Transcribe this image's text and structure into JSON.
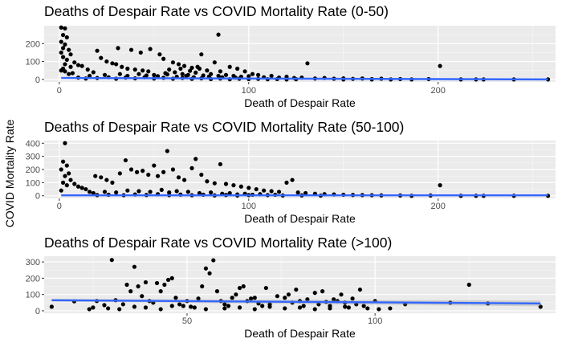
{
  "figure": {
    "ylabel": "COVID Mortality Rate"
  },
  "chart_data": [
    {
      "type": "scatter",
      "title": "Deaths of Despair Rate vs COVID Mortality Rate (0-50)",
      "xlabel": "Death of Despair Rate",
      "ylabel": "COVID Mortality Rate",
      "xlim": [
        -8,
        262
      ],
      "ylim": [
        -14,
        300
      ],
      "xticks": [
        0,
        100,
        200
      ],
      "yticks": [
        0,
        100,
        200
      ],
      "grid": true,
      "trend": {
        "x0": 1,
        "y0": 8,
        "x1": 258,
        "y1": 0,
        "band": 1
      },
      "points": [
        [
          1,
          290
        ],
        [
          3,
          285
        ],
        [
          2,
          248
        ],
        [
          4,
          235
        ],
        [
          1,
          210
        ],
        [
          3,
          195
        ],
        [
          2,
          175
        ],
        [
          5,
          165
        ],
        [
          1,
          150
        ],
        [
          6,
          140
        ],
        [
          2,
          125
        ],
        [
          4,
          110
        ],
        [
          8,
          95
        ],
        [
          3,
          85
        ],
        [
          10,
          80
        ],
        [
          12,
          75
        ],
        [
          6,
          70
        ],
        [
          2,
          60
        ],
        [
          15,
          55
        ],
        [
          1,
          50
        ],
        [
          3,
          45
        ],
        [
          18,
          40
        ],
        [
          7,
          35
        ],
        [
          5,
          30
        ],
        [
          20,
          160
        ],
        [
          22,
          120
        ],
        [
          25,
          100
        ],
        [
          28,
          90
        ],
        [
          30,
          85
        ],
        [
          33,
          70
        ],
        [
          36,
          60
        ],
        [
          40,
          55
        ],
        [
          44,
          50
        ],
        [
          47,
          45
        ],
        [
          31,
          175
        ],
        [
          38,
          165
        ],
        [
          43,
          150
        ],
        [
          48,
          170
        ],
        [
          53,
          140
        ],
        [
          55,
          115
        ],
        [
          60,
          95
        ],
        [
          63,
          85
        ],
        [
          66,
          75
        ],
        [
          70,
          65
        ],
        [
          74,
          60
        ],
        [
          78,
          50
        ],
        [
          36,
          20
        ],
        [
          42,
          30
        ],
        [
          50,
          25
        ],
        [
          56,
          35
        ],
        [
          61,
          40
        ],
        [
          65,
          30
        ],
        [
          68,
          25
        ],
        [
          72,
          38
        ],
        [
          76,
          22
        ],
        [
          80,
          30
        ],
        [
          84,
          20
        ],
        [
          88,
          25
        ],
        [
          58,
          55
        ],
        [
          64,
          60
        ],
        [
          69,
          48
        ],
        [
          73,
          70
        ],
        [
          84,
          250
        ],
        [
          75,
          140
        ],
        [
          82,
          95
        ],
        [
          90,
          70
        ],
        [
          94,
          60
        ],
        [
          98,
          45
        ],
        [
          102,
          30
        ],
        [
          105,
          25
        ],
        [
          85,
          45
        ],
        [
          92,
          20
        ],
        [
          96,
          15
        ],
        [
          100,
          18
        ],
        [
          108,
          12
        ],
        [
          112,
          20
        ],
        [
          116,
          10
        ],
        [
          120,
          15
        ],
        [
          124,
          8
        ],
        [
          128,
          10
        ],
        [
          131,
          90
        ],
        [
          135,
          5
        ],
        [
          140,
          8
        ],
        [
          145,
          4
        ],
        [
          150,
          6
        ],
        [
          155,
          3
        ],
        [
          160,
          5
        ],
        [
          165,
          2
        ],
        [
          170,
          4
        ],
        [
          175,
          0
        ],
        [
          180,
          2
        ],
        [
          186,
          0
        ],
        [
          201,
          75
        ],
        [
          212,
          0
        ],
        [
          220,
          0
        ],
        [
          224,
          0
        ],
        [
          240,
          0
        ],
        [
          258,
          0
        ],
        [
          195,
          2
        ],
        [
          150,
          0
        ],
        [
          165,
          0
        ],
        [
          10,
          10
        ],
        [
          14,
          5
        ],
        [
          20,
          8
        ],
        [
          26,
          12
        ],
        [
          30,
          4
        ],
        [
          35,
          10
        ],
        [
          40,
          6
        ],
        [
          45,
          12
        ],
        [
          50,
          5
        ],
        [
          55,
          9
        ],
        [
          60,
          4
        ],
        [
          65,
          8
        ],
        [
          70,
          3
        ],
        [
          75,
          6
        ],
        [
          80,
          2
        ],
        [
          85,
          5
        ],
        [
          90,
          1
        ],
        [
          95,
          4
        ],
        [
          100,
          2
        ],
        [
          105,
          3
        ],
        [
          110,
          1
        ],
        [
          115,
          2
        ],
        [
          120,
          0
        ],
        [
          125,
          1
        ],
        [
          16,
          20
        ],
        [
          24,
          25
        ],
        [
          32,
          30
        ],
        [
          46,
          22
        ],
        [
          52,
          18
        ],
        [
          57,
          28
        ],
        [
          62,
          15
        ],
        [
          67,
          20
        ],
        [
          71,
          12
        ],
        [
          79,
          16
        ],
        [
          86,
          12
        ],
        [
          93,
          10
        ]
      ]
    },
    {
      "type": "scatter",
      "title": "Deaths of Despair Rate vs COVID Mortality Rate (50-100)",
      "xlabel": "Death of Despair Rate",
      "ylabel": "COVID Mortality Rate",
      "xlim": [
        -8,
        262
      ],
      "ylim": [
        -20,
        420
      ],
      "xticks": [
        0,
        100,
        200
      ],
      "yticks": [
        0,
        100,
        200,
        300,
        400
      ],
      "grid": true,
      "trend": {
        "x0": 1,
        "y0": 3,
        "x1": 258,
        "y1": 3,
        "band": 1
      },
      "points": [
        [
          3,
          400
        ],
        [
          2,
          260
        ],
        [
          4,
          230
        ],
        [
          1,
          200
        ],
        [
          5,
          170
        ],
        [
          3,
          150
        ],
        [
          6,
          120
        ],
        [
          2,
          100
        ],
        [
          8,
          90
        ],
        [
          4,
          80
        ],
        [
          10,
          70
        ],
        [
          12,
          60
        ],
        [
          14,
          50
        ],
        [
          1,
          40
        ],
        [
          16,
          30
        ],
        [
          19,
          150
        ],
        [
          22,
          140
        ],
        [
          25,
          120
        ],
        [
          28,
          100
        ],
        [
          32,
          170
        ],
        [
          35,
          270
        ],
        [
          38,
          200
        ],
        [
          41,
          180
        ],
        [
          44,
          190
        ],
        [
          47,
          160
        ],
        [
          50,
          230
        ],
        [
          52,
          150
        ],
        [
          55,
          180
        ],
        [
          57,
          340
        ],
        [
          60,
          200
        ],
        [
          63,
          140
        ],
        [
          66,
          120
        ],
        [
          70,
          210
        ],
        [
          72,
          280
        ],
        [
          75,
          160
        ],
        [
          78,
          110
        ],
        [
          82,
          95
        ],
        [
          85,
          240
        ],
        [
          88,
          90
        ],
        [
          92,
          80
        ],
        [
          96,
          70
        ],
        [
          100,
          60
        ],
        [
          104,
          50
        ],
        [
          108,
          40
        ],
        [
          112,
          35
        ],
        [
          116,
          30
        ],
        [
          120,
          100
        ],
        [
          123,
          120
        ],
        [
          126,
          25
        ],
        [
          130,
          20
        ],
        [
          135,
          15
        ],
        [
          140,
          12
        ],
        [
          145,
          10
        ],
        [
          150,
          8
        ],
        [
          155,
          6
        ],
        [
          160,
          5
        ],
        [
          165,
          4
        ],
        [
          170,
          3
        ],
        [
          180,
          2
        ],
        [
          201,
          80
        ],
        [
          212,
          0
        ],
        [
          220,
          0
        ],
        [
          224,
          0
        ],
        [
          240,
          0
        ],
        [
          258,
          0
        ],
        [
          186,
          0
        ],
        [
          196,
          2
        ],
        [
          18,
          20
        ],
        [
          24,
          30
        ],
        [
          30,
          25
        ],
        [
          36,
          40
        ],
        [
          42,
          35
        ],
        [
          48,
          30
        ],
        [
          54,
          45
        ],
        [
          58,
          25
        ],
        [
          62,
          35
        ],
        [
          68,
          30
        ],
        [
          74,
          20
        ],
        [
          80,
          25
        ],
        [
          86,
          15
        ],
        [
          90,
          20
        ],
        [
          94,
          10
        ],
        [
          98,
          15
        ],
        [
          102,
          8
        ],
        [
          106,
          12
        ],
        [
          110,
          5
        ],
        [
          114,
          8
        ],
        [
          20,
          5
        ],
        [
          26,
          8
        ],
        [
          34,
          4
        ],
        [
          40,
          10
        ],
        [
          46,
          6
        ],
        [
          52,
          12
        ],
        [
          58,
          5
        ],
        [
          64,
          9
        ],
        [
          70,
          4
        ],
        [
          76,
          8
        ],
        [
          82,
          3
        ],
        [
          88,
          6
        ],
        [
          94,
          2
        ],
        [
          100,
          5
        ],
        [
          118,
          2
        ],
        [
          128,
          3
        ],
        [
          138,
          1
        ]
      ]
    },
    {
      "type": "scatter",
      "title": "Deaths of Despair Rate vs COVID Mortality Rate (>100)",
      "xlabel": "Death of Despair Rate",
      "ylabel": "COVID Mortality Rate",
      "xlim": [
        12,
        148
      ],
      "ylim": [
        -15,
        335
      ],
      "xticks": [
        50,
        100
      ],
      "yticks": [
        0,
        100,
        200,
        300
      ],
      "grid": true,
      "trend": {
        "x0": 14,
        "y0": 65,
        "x1": 144,
        "y1": 45,
        "band": 8
      },
      "points": [
        [
          14,
          25
        ],
        [
          20,
          58
        ],
        [
          24,
          10
        ],
        [
          26,
          60
        ],
        [
          28,
          35
        ],
        [
          30,
          312
        ],
        [
          31,
          65
        ],
        [
          33,
          40
        ],
        [
          34,
          160
        ],
        [
          35,
          120
        ],
        [
          36,
          270
        ],
        [
          37,
          150
        ],
        [
          38,
          90
        ],
        [
          39,
          175
        ],
        [
          40,
          60
        ],
        [
          41,
          50
        ],
        [
          42,
          170
        ],
        [
          43,
          120
        ],
        [
          44,
          160
        ],
        [
          45,
          190
        ],
        [
          46,
          200
        ],
        [
          47,
          80
        ],
        [
          48,
          40
        ],
        [
          49,
          30
        ],
        [
          50,
          60
        ],
        [
          52,
          20
        ],
        [
          53,
          75
        ],
        [
          54,
          150
        ],
        [
          55,
          260
        ],
        [
          56,
          230
        ],
        [
          57,
          310
        ],
        [
          58,
          120
        ],
        [
          59,
          60
        ],
        [
          60,
          40
        ],
        [
          61,
          30
        ],
        [
          62,
          80
        ],
        [
          63,
          100
        ],
        [
          64,
          140
        ],
        [
          65,
          150
        ],
        [
          66,
          60
        ],
        [
          67,
          75
        ],
        [
          68,
          80
        ],
        [
          69,
          45
        ],
        [
          70,
          30
        ],
        [
          71,
          140
        ],
        [
          72,
          40
        ],
        [
          74,
          90
        ],
        [
          76,
          80
        ],
        [
          77,
          100
        ],
        [
          78,
          50
        ],
        [
          79,
          130
        ],
        [
          80,
          60
        ],
        [
          81,
          30
        ],
        [
          82,
          70
        ],
        [
          84,
          110
        ],
        [
          85,
          40
        ],
        [
          86,
          120
        ],
        [
          87,
          55
        ],
        [
          88,
          30
        ],
        [
          89,
          70
        ],
        [
          90,
          60
        ],
        [
          91,
          100
        ],
        [
          92,
          50
        ],
        [
          93,
          20
        ],
        [
          94,
          75
        ],
        [
          95,
          40
        ],
        [
          96,
          130
        ],
        [
          97,
          30
        ],
        [
          98,
          15
        ],
        [
          100,
          60
        ],
        [
          101,
          10
        ],
        [
          104,
          15
        ],
        [
          108,
          40
        ],
        [
          120,
          50
        ],
        [
          125,
          160
        ],
        [
          130,
          45
        ],
        [
          144,
          25
        ],
        [
          25,
          20
        ],
        [
          29,
          15
        ],
        [
          32,
          10
        ],
        [
          36,
          25
        ],
        [
          39,
          20
        ],
        [
          43,
          10
        ],
        [
          46,
          30
        ],
        [
          51,
          25
        ],
        [
          55,
          10
        ],
        [
          60,
          15
        ],
        [
          64,
          20
        ],
        [
          68,
          10
        ],
        [
          72,
          25
        ],
        [
          76,
          15
        ],
        [
          80,
          20
        ],
        [
          84,
          10
        ],
        [
          88,
          15
        ],
        [
          92,
          25
        ]
      ]
    }
  ]
}
